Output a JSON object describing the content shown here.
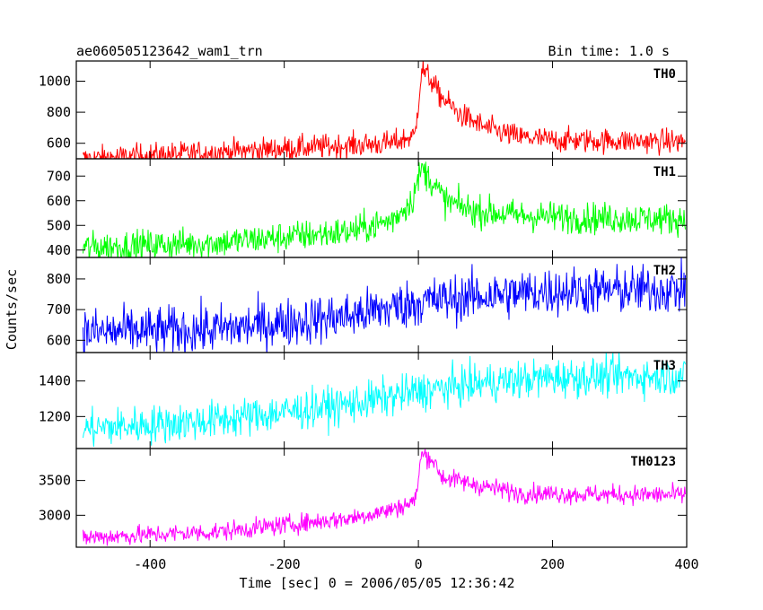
{
  "header": {
    "title": "ae060505123642_wam1_trn",
    "bin_time": "Bin time: 1.0 s"
  },
  "axes": {
    "xlabel": "Time [sec] 0 = 2006/05/05 12:36:42",
    "ylabel": "Counts/sec"
  },
  "chart_data": [
    {
      "type": "line",
      "name": "TH0",
      "color": "#ff0000",
      "xlim": [
        -510,
        400
      ],
      "ylim": [
        500,
        1130
      ],
      "yticks": [
        600,
        800,
        1000
      ],
      "baseline": [
        [
          -500,
          500
        ],
        [
          -200,
          565
        ],
        [
          -40,
          600
        ],
        [
          -5,
          650
        ],
        [
          5,
          1080
        ],
        [
          20,
          1000
        ],
        [
          30,
          920
        ],
        [
          60,
          790
        ],
        [
          100,
          700
        ],
        [
          150,
          640
        ],
        [
          200,
          620
        ],
        [
          300,
          615
        ],
        [
          400,
          610
        ]
      ],
      "noise": 40
    },
    {
      "type": "line",
      "name": "TH1",
      "color": "#00ff00",
      "xlim": [
        -510,
        400
      ],
      "ylim": [
        370,
        770
      ],
      "yticks": [
        400,
        500,
        600,
        700
      ],
      "baseline": [
        [
          -500,
          410
        ],
        [
          -300,
          430
        ],
        [
          -100,
          475
        ],
        [
          -40,
          520
        ],
        [
          -10,
          600
        ],
        [
          5,
          730
        ],
        [
          20,
          680
        ],
        [
          40,
          600
        ],
        [
          80,
          560
        ],
        [
          150,
          540
        ],
        [
          250,
          530
        ],
        [
          400,
          525
        ]
      ],
      "noise": 32
    },
    {
      "type": "line",
      "name": "TH2",
      "color": "#0000ff",
      "xlim": [
        -510,
        400
      ],
      "ylim": [
        560,
        870
      ],
      "yticks": [
        600,
        700,
        800
      ],
      "baseline": [
        [
          -500,
          625
        ],
        [
          -300,
          635
        ],
        [
          -100,
          680
        ],
        [
          0,
          725
        ],
        [
          100,
          745
        ],
        [
          200,
          760
        ],
        [
          400,
          765
        ]
      ],
      "noise": 40
    },
    {
      "type": "line",
      "name": "TH3",
      "color": "#00ffff",
      "xlim": [
        -510,
        400
      ],
      "ylim": [
        1020,
        1560
      ],
      "yticks": [
        1200,
        1400
      ],
      "baseline": [
        [
          -500,
          1130
        ],
        [
          -300,
          1180
        ],
        [
          -100,
          1270
        ],
        [
          0,
          1340
        ],
        [
          100,
          1390
        ],
        [
          200,
          1420
        ],
        [
          400,
          1430
        ]
      ],
      "noise": 55
    },
    {
      "type": "line",
      "name": "TH0123",
      "color": "#ff00ff",
      "xlim": [
        -510,
        400
      ],
      "ylim": [
        2540,
        3960
      ],
      "yticks": [
        3000,
        3500
      ],
      "baseline": [
        [
          -500,
          2680
        ],
        [
          -300,
          2760
        ],
        [
          -100,
          2960
        ],
        [
          -40,
          3080
        ],
        [
          -5,
          3200
        ],
        [
          5,
          3880
        ],
        [
          20,
          3820
        ],
        [
          35,
          3550
        ],
        [
          80,
          3450
        ],
        [
          150,
          3320
        ],
        [
          250,
          3300
        ],
        [
          400,
          3290
        ]
      ],
      "noise": 70
    }
  ],
  "xticks": [
    -400,
    -200,
    0,
    200,
    400
  ]
}
